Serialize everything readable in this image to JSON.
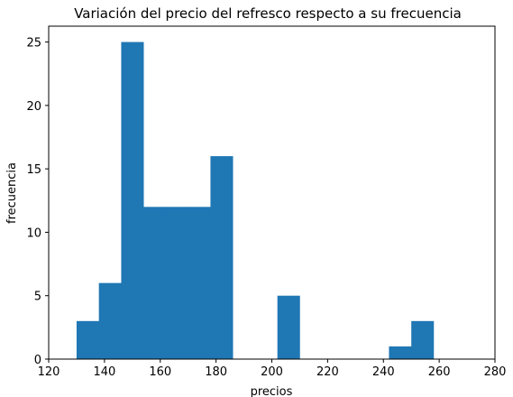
{
  "chart_data": {
    "type": "bar",
    "title": "Variación del precio del refresco respecto a su frecuencia",
    "xlabel": "precios",
    "ylabel": "frecuencia",
    "xlim": [
      120,
      280
    ],
    "ylim": [
      0,
      26.25
    ],
    "x_ticks": [
      120,
      140,
      160,
      180,
      200,
      220,
      240,
      260,
      280
    ],
    "y_ticks": [
      0,
      5,
      10,
      15,
      20,
      25
    ],
    "bar_color": "#1f77b4",
    "bins": [
      {
        "start": 130,
        "end": 138,
        "value": 3
      },
      {
        "start": 138,
        "end": 146,
        "value": 6
      },
      {
        "start": 146,
        "end": 154,
        "value": 25
      },
      {
        "start": 154,
        "end": 162,
        "value": 12
      },
      {
        "start": 162,
        "end": 170,
        "value": 12
      },
      {
        "start": 170,
        "end": 178,
        "value": 12
      },
      {
        "start": 178,
        "end": 186,
        "value": 16
      },
      {
        "start": 186,
        "end": 194,
        "value": 0
      },
      {
        "start": 194,
        "end": 202,
        "value": 0
      },
      {
        "start": 202,
        "end": 210,
        "value": 5
      },
      {
        "start": 210,
        "end": 218,
        "value": 0
      },
      {
        "start": 218,
        "end": 226,
        "value": 0
      },
      {
        "start": 226,
        "end": 234,
        "value": 0
      },
      {
        "start": 234,
        "end": 242,
        "value": 0
      },
      {
        "start": 242,
        "end": 250,
        "value": 1
      },
      {
        "start": 250,
        "end": 258,
        "value": 3
      }
    ],
    "grid": false,
    "legend": "none"
  }
}
